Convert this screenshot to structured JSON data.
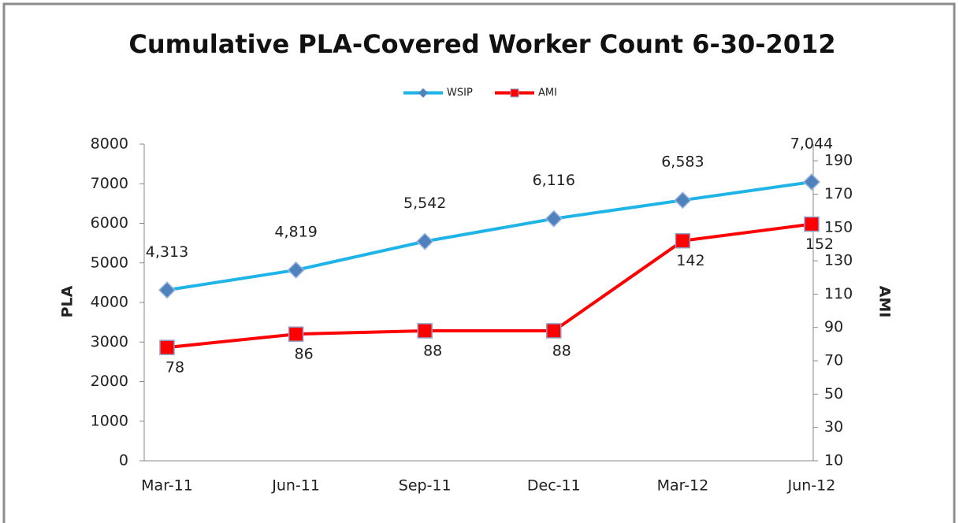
{
  "chart_data": {
    "type": "line",
    "title": "Cumulative PLA-Covered Worker Count 6-30-2012",
    "categories": [
      "Mar-11",
      "Jun-11",
      "Sep-11",
      "Dec-11",
      "Mar-12",
      "Jun-12"
    ],
    "series": [
      {
        "name": "WSIP",
        "color": "#1fb4e8",
        "marker_color": "#4f81bd",
        "values": [
          4313,
          4819,
          5542,
          6116,
          6583,
          7044
        ],
        "value_labels": [
          "4,313",
          "4,819",
          "5,542",
          "6,116",
          "6,583",
          "7,044"
        ]
      },
      {
        "name": "AMI",
        "color": "#ff0000",
        "marker_color": "#ff0000",
        "axis": "y2",
        "values": [
          78,
          86,
          88,
          88,
          142,
          152
        ]
      }
    ],
    "ylabel": "PLA",
    "y2label": "AMI",
    "ylim": [
      0,
      8000
    ],
    "yticks": [
      0,
      1000,
      2000,
      3000,
      4000,
      5000,
      6000,
      7000,
      8000
    ],
    "y2lim": [
      10,
      200
    ],
    "y2ticks": [
      10,
      30,
      50,
      70,
      90,
      110,
      130,
      150,
      170,
      190
    ],
    "legend": "top",
    "grid": false
  }
}
